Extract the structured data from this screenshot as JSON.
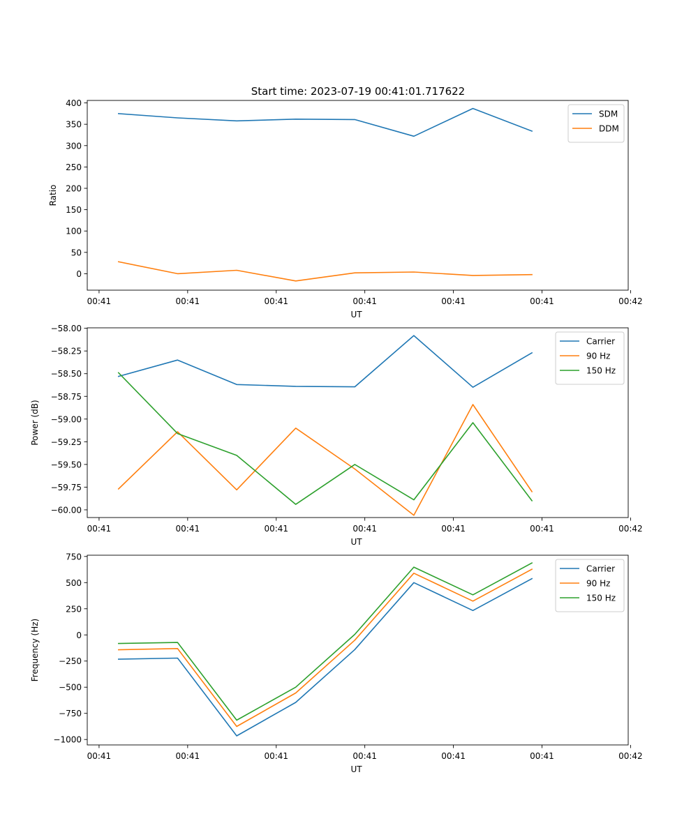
{
  "figure_title": "Start time: 2023-07-19 00:41:01.717622",
  "colors": {
    "c0": "#1f77b4",
    "c1": "#ff7f0e",
    "c2": "#2ca02c"
  },
  "chart_data": [
    {
      "type": "line",
      "xlabel": "UT",
      "ylabel": "Ratio",
      "xlim": [
        -0.53,
        8.63
      ],
      "ylim": [
        -38.5,
        405.8
      ],
      "x_ticks": [
        {
          "value": -0.33,
          "label": "00:41"
        },
        {
          "value": 1.17,
          "label": "00:41"
        },
        {
          "value": 2.67,
          "label": "00:41"
        },
        {
          "value": 4.17,
          "label": "00:41"
        },
        {
          "value": 5.67,
          "label": "00:41"
        },
        {
          "value": 7.17,
          "label": "00:41"
        },
        {
          "value": 8.67,
          "label": "00:42"
        }
      ],
      "y_ticks": [
        {
          "value": 400,
          "label": "400"
        },
        {
          "value": 350,
          "label": "350"
        },
        {
          "value": 300,
          "label": "300"
        },
        {
          "value": 250,
          "label": "250"
        },
        {
          "value": 200,
          "label": "200"
        },
        {
          "value": 150,
          "label": "150"
        },
        {
          "value": 100,
          "label": "100"
        },
        {
          "value": 50,
          "label": "50"
        },
        {
          "value": 0,
          "label": "0"
        }
      ],
      "x": [
        0,
        1,
        2,
        3,
        4,
        5,
        6,
        7
      ],
      "legend_position": "top-right",
      "series": [
        {
          "name": "SDM",
          "color": "#1f77b4",
          "values": [
            375,
            365,
            358,
            362,
            361,
            322,
            387,
            334
          ]
        },
        {
          "name": "DDM",
          "color": "#ff7f0e",
          "values": [
            28,
            0,
            8,
            -17,
            2,
            4,
            -4,
            -2
          ]
        }
      ]
    },
    {
      "type": "line",
      "xlabel": "UT",
      "ylabel": "Power (dB)",
      "xlim": [
        -0.53,
        8.63
      ],
      "ylim": [
        -60.085,
        -57.995
      ],
      "x_ticks": [
        {
          "value": -0.33,
          "label": "00:41"
        },
        {
          "value": 1.17,
          "label": "00:41"
        },
        {
          "value": 2.67,
          "label": "00:41"
        },
        {
          "value": 4.17,
          "label": "00:41"
        },
        {
          "value": 5.67,
          "label": "00:41"
        },
        {
          "value": 7.17,
          "label": "00:41"
        },
        {
          "value": 8.67,
          "label": "00:42"
        }
      ],
      "y_ticks": [
        {
          "value": -58.0,
          "label": "−58.00"
        },
        {
          "value": -58.25,
          "label": "−58.25"
        },
        {
          "value": -58.5,
          "label": "−58.50"
        },
        {
          "value": -58.75,
          "label": "−58.75"
        },
        {
          "value": -59.0,
          "label": "−59.00"
        },
        {
          "value": -59.25,
          "label": "−59.25"
        },
        {
          "value": -59.5,
          "label": "−59.50"
        },
        {
          "value": -59.75,
          "label": "−59.75"
        },
        {
          "value": -60.0,
          "label": "−60.00"
        }
      ],
      "x": [
        0,
        1,
        2,
        3,
        4,
        5,
        6,
        7
      ],
      "legend_position": "top-right",
      "series": [
        {
          "name": "Carrier",
          "color": "#1f77b4",
          "values": [
            -58.53,
            -58.35,
            -58.62,
            -58.64,
            -58.645,
            -58.08,
            -58.65,
            -58.27
          ]
        },
        {
          "name": "90 Hz",
          "color": "#ff7f0e",
          "values": [
            -59.77,
            -59.14,
            -59.78,
            -59.1,
            -59.55,
            -60.06,
            -58.84,
            -59.8
          ]
        },
        {
          "name": "150 Hz",
          "color": "#2ca02c",
          "values": [
            -58.49,
            -59.16,
            -59.4,
            -59.94,
            -59.5,
            -59.89,
            -59.04,
            -59.9
          ]
        }
      ]
    },
    {
      "type": "line",
      "xlabel": "UT",
      "ylabel": "Frequency (Hz)",
      "xlim": [
        -0.53,
        8.63
      ],
      "ylim": [
        -1052,
        762
      ],
      "x_ticks": [
        {
          "value": -0.33,
          "label": "00:41"
        },
        {
          "value": 1.17,
          "label": "00:41"
        },
        {
          "value": 2.67,
          "label": "00:41"
        },
        {
          "value": 4.17,
          "label": "00:41"
        },
        {
          "value": 5.67,
          "label": "00:41"
        },
        {
          "value": 7.17,
          "label": "00:41"
        },
        {
          "value": 8.67,
          "label": "00:42"
        }
      ],
      "y_ticks": [
        {
          "value": 750,
          "label": "750"
        },
        {
          "value": 500,
          "label": "500"
        },
        {
          "value": 250,
          "label": "250"
        },
        {
          "value": 0,
          "label": "0"
        },
        {
          "value": -250,
          "label": "−250"
        },
        {
          "value": -500,
          "label": "−500"
        },
        {
          "value": -750,
          "label": "−750"
        },
        {
          "value": -1000,
          "label": "−1000"
        }
      ],
      "x": [
        0,
        1,
        2,
        3,
        4,
        5,
        6,
        7
      ],
      "legend_position": "top-right",
      "series": [
        {
          "name": "Carrier",
          "color": "#1f77b4",
          "values": [
            -232,
            -222,
            -965,
            -645,
            -140,
            500,
            233,
            538
          ]
        },
        {
          "name": "90 Hz",
          "color": "#ff7f0e",
          "values": [
            -142,
            -130,
            -875,
            -555,
            -50,
            590,
            323,
            628
          ]
        },
        {
          "name": "150 Hz",
          "color": "#2ca02c",
          "values": [
            -82,
            -72,
            -815,
            -500,
            5,
            648,
            383,
            688
          ]
        }
      ]
    }
  ]
}
